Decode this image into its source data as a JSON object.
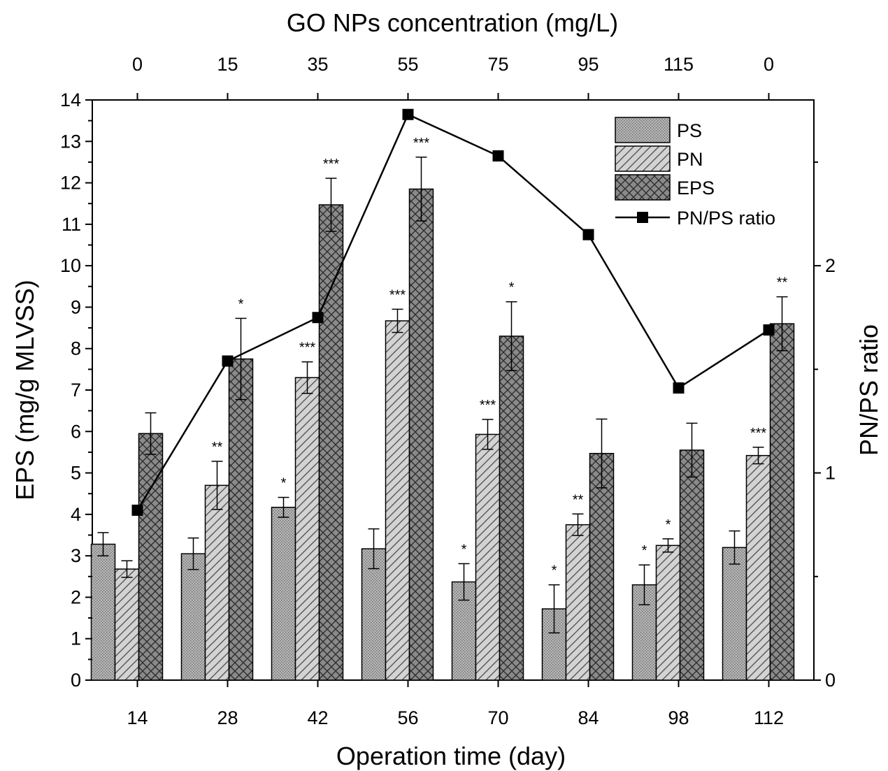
{
  "chart_data": {
    "type": "bar",
    "xlabel": "Operation time (day)",
    "top_xlabel": "GO NPs concentration (mg/L)",
    "ylabel": "EPS (mg/g MLVSS)",
    "y2label": "PN/PS ratio",
    "categories": [
      "14",
      "28",
      "42",
      "56",
      "70",
      "84",
      "98",
      "112"
    ],
    "top_categories": [
      "0",
      "15",
      "35",
      "55",
      "75",
      "95",
      "115",
      "0"
    ],
    "ylim": [
      0,
      14
    ],
    "y_ticks": [
      "0",
      "1",
      "2",
      "3",
      "4",
      "5",
      "6",
      "7",
      "8",
      "9",
      "10",
      "11",
      "12",
      "13",
      "14"
    ],
    "y2lim": [
      0,
      2.8
    ],
    "y2_ticks": [
      "0",
      "1",
      "2"
    ],
    "grid": false,
    "legend_position": "top-right",
    "series": [
      {
        "name": "PS",
        "kind": "bar",
        "pattern": "dots",
        "values": [
          3.28,
          3.05,
          4.17,
          3.17,
          2.37,
          1.72,
          2.3,
          3.2
        ],
        "errors": [
          0.28,
          0.38,
          0.24,
          0.48,
          0.44,
          0.58,
          0.48,
          0.4
        ],
        "significance": [
          "",
          "",
          "*",
          "",
          "*",
          "*",
          "*",
          ""
        ]
      },
      {
        "name": "PN",
        "kind": "bar",
        "pattern": "diagonal",
        "values": [
          2.68,
          4.7,
          7.3,
          8.67,
          5.93,
          3.75,
          3.25,
          5.42
        ],
        "errors": [
          0.2,
          0.58,
          0.38,
          0.28,
          0.36,
          0.26,
          0.16,
          0.2
        ],
        "significance": [
          "",
          "**",
          "***",
          "***",
          "***",
          "**",
          "*",
          "***"
        ]
      },
      {
        "name": "EPS",
        "kind": "bar",
        "pattern": "crosshatch",
        "values": [
          5.95,
          7.75,
          11.47,
          11.85,
          8.3,
          5.47,
          5.55,
          8.6
        ],
        "errors": [
          0.5,
          0.98,
          0.64,
          0.77,
          0.83,
          0.83,
          0.65,
          0.65
        ],
        "significance": [
          "",
          "*",
          "***",
          "***",
          "*",
          "",
          "",
          "**"
        ]
      },
      {
        "name": "PN/PS ratio",
        "kind": "line",
        "axis": "right",
        "values": [
          0.82,
          1.54,
          1.75,
          2.73,
          2.53,
          2.15,
          1.41,
          1.69
        ]
      }
    ],
    "colors": {
      "PS": "#a6a6a6",
      "PN": "#d0d0d0",
      "EPS": "#7a7a7a",
      "line": "#000000"
    }
  }
}
